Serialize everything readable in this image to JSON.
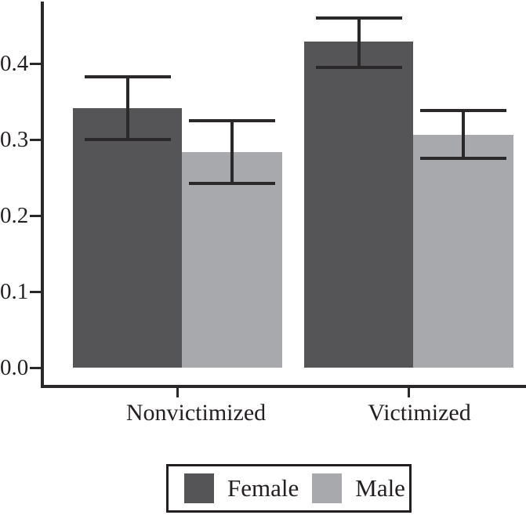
{
  "chart_data": {
    "type": "bar",
    "title": "",
    "xlabel": "",
    "ylabel": "",
    "categories": [
      "Nonvictimized",
      "Victimized"
    ],
    "series": [
      {
        "name": "Female",
        "color": "#555557",
        "values": [
          0.341,
          0.429
        ],
        "ci_low": [
          0.3,
          0.395
        ],
        "ci_high": [
          0.382,
          0.46
        ]
      },
      {
        "name": "Male",
        "color": "#a8a9ac",
        "values": [
          0.284,
          0.306
        ],
        "ci_low": [
          0.242,
          0.275
        ],
        "ci_high": [
          0.325,
          0.338
        ]
      }
    ],
    "y_axis": {
      "tick_labels": [
        "0.0",
        "0.1",
        "0.2",
        "0.3",
        "0.4"
      ],
      "tick_values": [
        0.0,
        0.1,
        0.2,
        0.3,
        0.4
      ],
      "range": [
        0.0,
        0.483
      ]
    },
    "error_bars": true,
    "grid": false,
    "legend": {
      "position": "bottom",
      "entries": [
        "Female",
        "Male"
      ]
    },
    "colors": {
      "axis": "#2b2829",
      "text": "#231f20",
      "background": "#ffffff"
    }
  }
}
